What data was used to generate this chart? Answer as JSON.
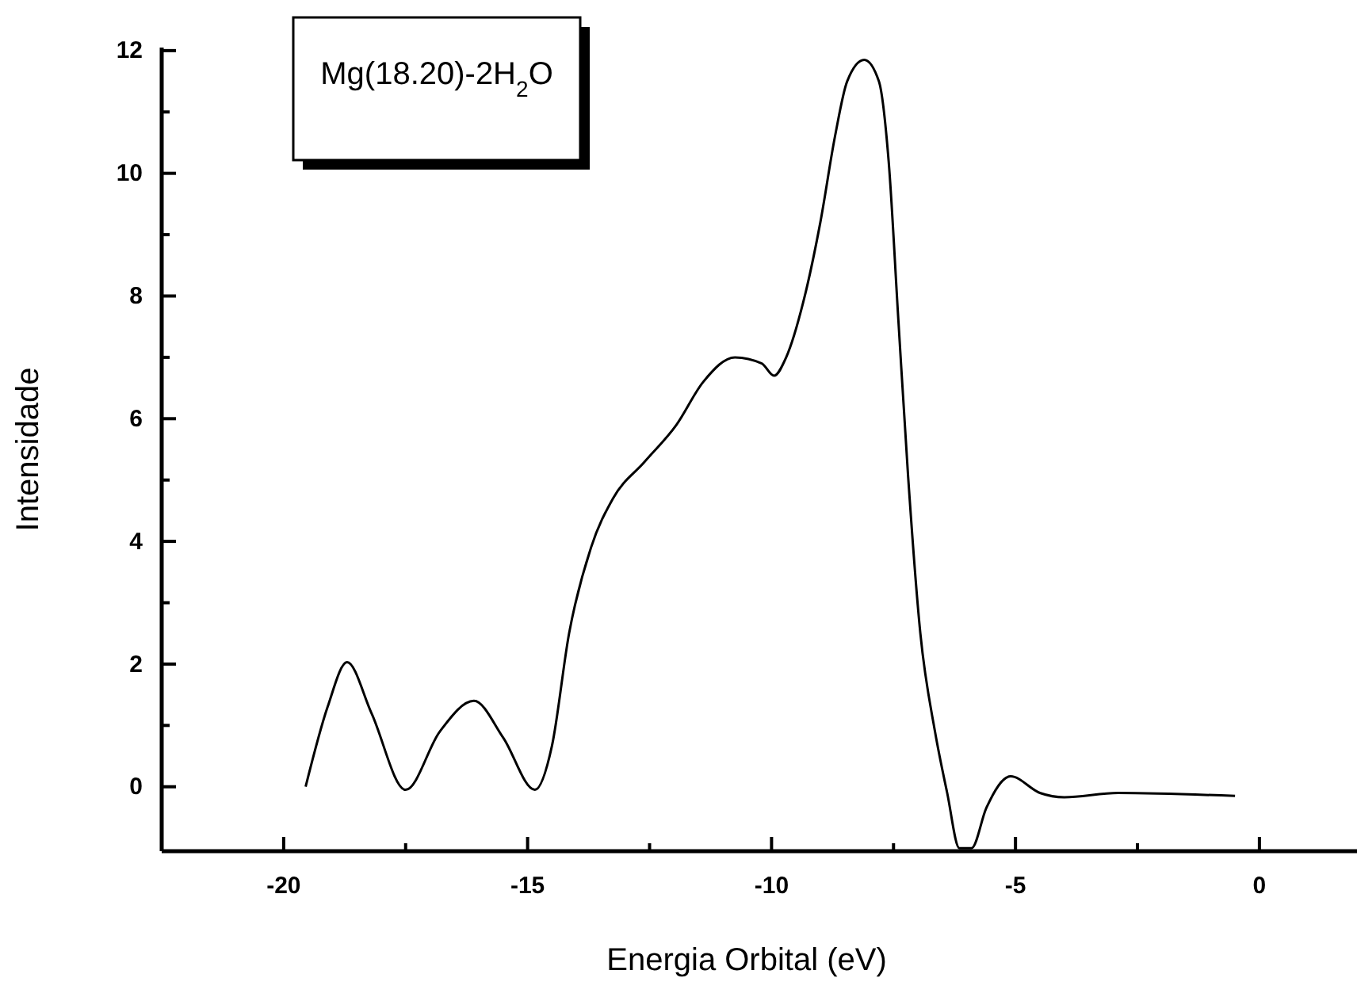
{
  "chart_data": {
    "type": "line",
    "title": "Mg(18.20)-2H$_{2}$O",
    "xlabel": "Energia Orbital (eV)",
    "ylabel": "Intensidade",
    "xlim": [
      -22.5,
      2
    ],
    "ylim": [
      -1.05,
      12.05
    ],
    "xticks": [
      -20,
      {
        "value": -17.5,
        "label": null
      },
      -15,
      {
        "value": -12.5,
        "label": null
      },
      -10,
      {
        "value": -7.5,
        "label": null
      },
      -5,
      {
        "value": -2.5,
        "label": null
      },
      0
    ],
    "yticks": [
      0,
      {
        "value": 1,
        "label": null
      },
      2,
      {
        "value": 3,
        "label": null
      },
      4,
      {
        "value": 5,
        "label": null
      },
      6,
      {
        "value": 7,
        "label": null
      },
      8,
      {
        "value": 9,
        "label": null
      },
      10,
      {
        "value": 11,
        "label": null
      },
      12
    ],
    "grid": false,
    "marker": "none",
    "line_style": "solid",
    "series": [
      {
        "color": "#000000",
        "x": [
          -19.55,
          -19.1,
          -18.7,
          -18.2,
          -17.5,
          -16.8,
          -16.1,
          -15.5,
          -14.85,
          -14.5,
          -14.15,
          -13.7,
          -13.25,
          -12.6,
          -11.95,
          -11.4,
          -10.75,
          -10.2,
          -9.95,
          -9.7,
          -9.35,
          -9.0,
          -8.7,
          -8.45,
          -8.1,
          -7.8,
          -7.6,
          -7.4,
          -7.2,
          -6.95,
          -6.65,
          -6.4,
          -6.15,
          -5.9,
          -5.6,
          -5.1,
          -4.5,
          -4.0,
          -2.9,
          -0.5
        ],
        "values": [
          0,
          1.3,
          2.03,
          1.2,
          -0.05,
          0.9,
          1.4,
          0.8,
          -0.05,
          0.67,
          2.5,
          3.9,
          4.7,
          5.3,
          5.9,
          6.6,
          7.0,
          6.9,
          6.7,
          7.0,
          7.9,
          9.2,
          10.6,
          11.5,
          11.85,
          11.5,
          10.2,
          7.6,
          5.05,
          2.5,
          0.9,
          -0.1,
          -1.0,
          -1.0,
          -0.35,
          0.17,
          -0.1,
          -0.17,
          -0.1,
          -0.15
        ]
      }
    ]
  }
}
